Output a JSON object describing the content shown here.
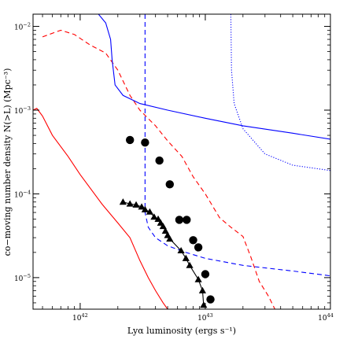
{
  "chart_data": {
    "type": "scatter",
    "title": "",
    "xlabel": "Lyα luminosity (ergs s⁻¹)",
    "ylabel": "co−moving number density N(>L) (Mpc⁻³)",
    "xscale": "log",
    "yscale": "log",
    "xlim": [
      4.2e+41,
      1e+44
    ],
    "ylim": [
      4.2e-06,
      0.014
    ],
    "grid": false,
    "legend": "none",
    "x_ticks": [
      {
        "value": 1e+42,
        "mant": "10",
        "exp": "42"
      },
      {
        "value": 1e+43,
        "mant": "10",
        "exp": "43"
      },
      {
        "value": 1e+44,
        "mant": "10",
        "exp": "44"
      }
    ],
    "y_ticks": [
      {
        "value": 1e-05,
        "mant": "10",
        "exp": "−5"
      },
      {
        "value": 0.0001,
        "mant": "10",
        "exp": "−4"
      },
      {
        "value": 0.001,
        "mant": "10",
        "exp": "−3"
      },
      {
        "value": 0.01,
        "mant": "10",
        "exp": "−2"
      }
    ],
    "series": [
      {
        "marker": "circle",
        "color": "#000000",
        "points": [
          [
            2.5e+42,
            0.00044
          ],
          [
            3.3e+42,
            0.00041
          ],
          [
            4.3e+42,
            0.00025
          ],
          [
            5.2e+42,
            0.00013
          ],
          [
            6.2e+42,
            4.9e-05
          ],
          [
            7.1e+42,
            4.9e-05
          ],
          [
            8e+42,
            2.8e-05
          ],
          [
            8.8e+42,
            2.3e-05
          ],
          [
            1e+43,
            1.1e-05
          ],
          [
            1.1e+43,
            5.5e-06
          ]
        ]
      },
      {
        "marker": "triangle",
        "line": "solid",
        "color": "#000000",
        "points": [
          [
            2.2e+42,
            8e-05
          ],
          [
            2.5e+42,
            7.6e-05
          ],
          [
            2.8e+42,
            7.4e-05
          ],
          [
            3.1e+42,
            7e-05
          ],
          [
            3.3e+42,
            6.5e-05
          ],
          [
            3.6e+42,
            6.1e-05
          ],
          [
            3.9e+42,
            5.3e-05
          ],
          [
            4.2e+42,
            5e-05
          ],
          [
            4.4e+42,
            4.5e-05
          ],
          [
            4.6e+42,
            4.1e-05
          ],
          [
            4.8e+42,
            3.6e-05
          ],
          [
            5e+42,
            3.2e-05
          ],
          [
            5.2e+42,
            2.9e-05
          ],
          [
            6.4e+42,
            2.1e-05
          ],
          [
            7e+42,
            1.7e-05
          ],
          [
            7.5e+42,
            1.4e-05
          ],
          [
            8.8e+42,
            9.5e-06
          ],
          [
            9.5e+42,
            7e-06
          ],
          [
            9.7e+42,
            4.7e-06
          ]
        ]
      },
      {
        "line": "solid",
        "color": "#ff0000",
        "points": [
          [
            4.2e+41,
            0.001
          ],
          [
            4.5e+41,
            0.00105
          ],
          [
            5e+41,
            0.00085
          ],
          [
            6e+41,
            0.0005
          ],
          [
            8e+41,
            0.00028
          ],
          [
            1e+42,
            0.00017
          ],
          [
            1.5e+42,
            7.5e-05
          ],
          [
            2e+42,
            4.5e-05
          ],
          [
            2.5e+42,
            3e-05
          ],
          [
            3e+42,
            1.6e-05
          ],
          [
            3.5e+42,
            1e-05
          ],
          [
            4e+42,
            7e-06
          ],
          [
            4.6e+42,
            5e-06
          ],
          [
            5e+42,
            4.2e-06
          ]
        ]
      },
      {
        "line": "dashed",
        "color": "#ff0000",
        "points": [
          [
            5e+41,
            0.0075
          ],
          [
            7e+41,
            0.009
          ],
          [
            9e+41,
            0.008
          ],
          [
            1.2e+42,
            0.006
          ],
          [
            1.6e+42,
            0.0048
          ],
          [
            2e+42,
            0.003
          ],
          [
            2.5e+42,
            0.0015
          ],
          [
            3e+42,
            0.001
          ],
          [
            4e+42,
            0.00065
          ],
          [
            5e+42,
            0.00043
          ],
          [
            6.5e+42,
            0.00028
          ],
          [
            8e+42,
            0.00016
          ],
          [
            1e+43,
            0.0001
          ],
          [
            1.3e+43,
            5.2e-05
          ],
          [
            1.6e+43,
            4e-05
          ],
          [
            2e+43,
            3.1e-05
          ],
          [
            2.3e+43,
            1.8e-05
          ],
          [
            2.7e+43,
            9e-06
          ],
          [
            3.2e+43,
            6e-06
          ],
          [
            3.6e+43,
            4.2e-06
          ]
        ]
      },
      {
        "line": "solid",
        "color": "#0000ff",
        "points": [
          [
            1.4e+42,
            0.014
          ],
          [
            1.6e+42,
            0.011
          ],
          [
            1.75e+42,
            0.007
          ],
          [
            1.8e+42,
            0.004
          ],
          [
            1.9e+42,
            0.002
          ],
          [
            2.2e+42,
            0.0015
          ],
          [
            3e+42,
            0.0012
          ],
          [
            5e+42,
            0.001
          ],
          [
            1e+43,
            0.0008
          ],
          [
            2e+43,
            0.00065
          ],
          [
            5e+43,
            0.00053
          ],
          [
            1e+44,
            0.00045
          ]
        ]
      },
      {
        "line": "dashed",
        "color": "#0000ff",
        "points": [
          [
            3.3e+42,
            0.014
          ],
          [
            3.3e+42,
            6e-05
          ],
          [
            3.5e+42,
            4e-05
          ],
          [
            4e+42,
            3e-05
          ],
          [
            5e+42,
            2.4e-05
          ],
          [
            7e+42,
            2e-05
          ],
          [
            1e+43,
            1.7e-05
          ],
          [
            2e+43,
            1.4e-05
          ],
          [
            5e+43,
            1.2e-05
          ],
          [
            1e+44,
            1.05e-05
          ]
        ]
      },
      {
        "line": "dotted",
        "color": "#0000ff",
        "points": [
          [
            1.6e+43,
            0.014
          ],
          [
            1.62e+43,
            0.003
          ],
          [
            1.7e+43,
            0.0012
          ],
          [
            2e+43,
            0.0006
          ],
          [
            3e+43,
            0.0003
          ],
          [
            5e+43,
            0.00022
          ],
          [
            1e+44,
            0.00019
          ]
        ]
      }
    ]
  }
}
